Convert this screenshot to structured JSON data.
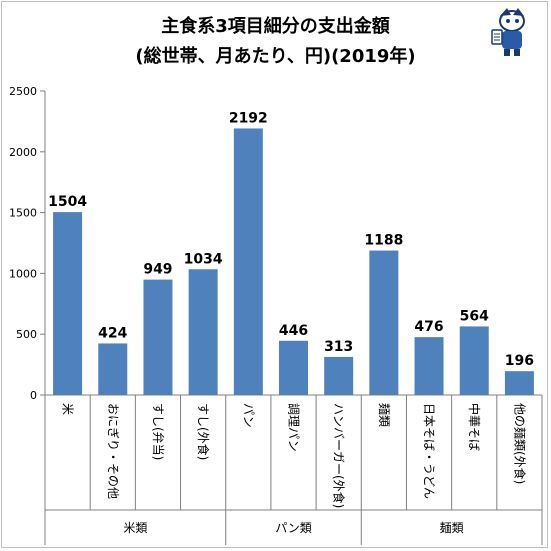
{
  "chart_data": {
    "type": "bar",
    "title": "主食系3項目細分の支出金額",
    "subtitle": "(総世帯、月あたり、円)(2019年)",
    "categories": [
      "米",
      "おにぎり・その他",
      "すし(弁当)",
      "すし(外食)",
      "パン",
      "調理パン",
      "ハンバーガー(外食)",
      "麺類",
      "日本そば・うどん",
      "中華そば",
      "他の麺類(外食)"
    ],
    "values": [
      1504,
      424,
      949,
      1034,
      2192,
      446,
      313,
      1188,
      476,
      564,
      196
    ],
    "groups": [
      {
        "label": "米類",
        "start": 0,
        "end": 3
      },
      {
        "label": "パン類",
        "start": 4,
        "end": 6
      },
      {
        "label": "麺類",
        "start": 7,
        "end": 10
      }
    ],
    "ylim": [
      0,
      2500
    ],
    "yticks": [
      0,
      500,
      1000,
      1500,
      2000,
      2500
    ],
    "bar_color": "#4f81bd",
    "grid": false,
    "legend": "none"
  }
}
